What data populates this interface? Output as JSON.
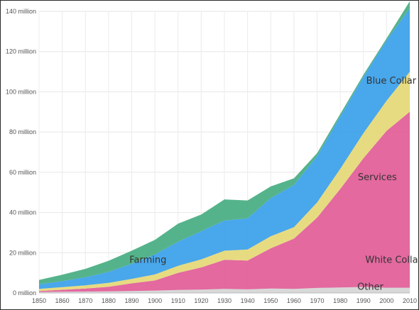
{
  "chart_data": {
    "type": "area",
    "stacked": true,
    "x": [
      1850,
      1860,
      1870,
      1880,
      1890,
      1900,
      1910,
      1920,
      1930,
      1940,
      1950,
      1960,
      1970,
      1980,
      1990,
      2000,
      2010
    ],
    "xticks": [
      "1850",
      "1860",
      "1870",
      "1880",
      "1890",
      "1900",
      "1910",
      "1920",
      "1930",
      "1940",
      "1950",
      "1960",
      "1970",
      "1980",
      "1990",
      "2000",
      "2010"
    ],
    "yticks": [
      "0 million",
      "20 million",
      "40 million",
      "60 million",
      "80 million",
      "100 million",
      "120 million",
      "140 million"
    ],
    "ylim": [
      0,
      140
    ],
    "grid": true,
    "series": [
      {
        "name": "Other",
        "color": "#d6d6d6",
        "values": [
          0.5,
          0.6,
          0.7,
          0.8,
          1.0,
          1.2,
          1.5,
          1.7,
          2.0,
          1.8,
          2.2,
          2.0,
          2.5,
          2.7,
          3.0,
          2.6,
          2.6
        ]
      },
      {
        "name": "White Collar",
        "color": "#e2619a",
        "values": [
          0.5,
          1.0,
          1.5,
          2.3,
          3.8,
          5.0,
          8.5,
          11.0,
          14.5,
          14.3,
          20.0,
          25.0,
          35.0,
          49.0,
          64.0,
          78.0,
          87.5
        ]
      },
      {
        "name": "Services",
        "color": "#e6d97a",
        "values": [
          1.0,
          1.3,
          1.6,
          1.9,
          2.2,
          3.0,
          3.5,
          4.0,
          4.5,
          5.5,
          6.0,
          5.7,
          7.5,
          10.0,
          12.5,
          15.0,
          19.9
        ]
      },
      {
        "name": "Blue Collar",
        "color": "#3fa2ea",
        "values": [
          2.3,
          3.0,
          4.0,
          5.5,
          7.5,
          10.0,
          12.0,
          14.0,
          15.0,
          15.5,
          19.0,
          21.0,
          23.0,
          26.0,
          28.0,
          30.0,
          31.5
        ]
      },
      {
        "name": "Farming",
        "color": "#4caf85",
        "values": [
          2.2,
          3.2,
          4.2,
          5.5,
          6.5,
          7.2,
          9.0,
          8.3,
          10.5,
          8.9,
          5.8,
          3.3,
          1.5,
          1.3,
          1.0,
          1.0,
          3.5
        ]
      }
    ],
    "labels": [
      {
        "series": "Other",
        "text": "Other",
        "x": 1993,
        "y": 1.5
      },
      {
        "series": "White Collar",
        "text": "White Collar",
        "x": 2003,
        "y": 15
      },
      {
        "series": "Services",
        "text": "Services",
        "x": 1996,
        "y": 56
      },
      {
        "series": "Blue Collar",
        "text": "Blue Collar",
        "x": 2002,
        "y": 104
      },
      {
        "series": "Farming",
        "text": "Farming",
        "x": 1897,
        "y": 15
      }
    ]
  }
}
